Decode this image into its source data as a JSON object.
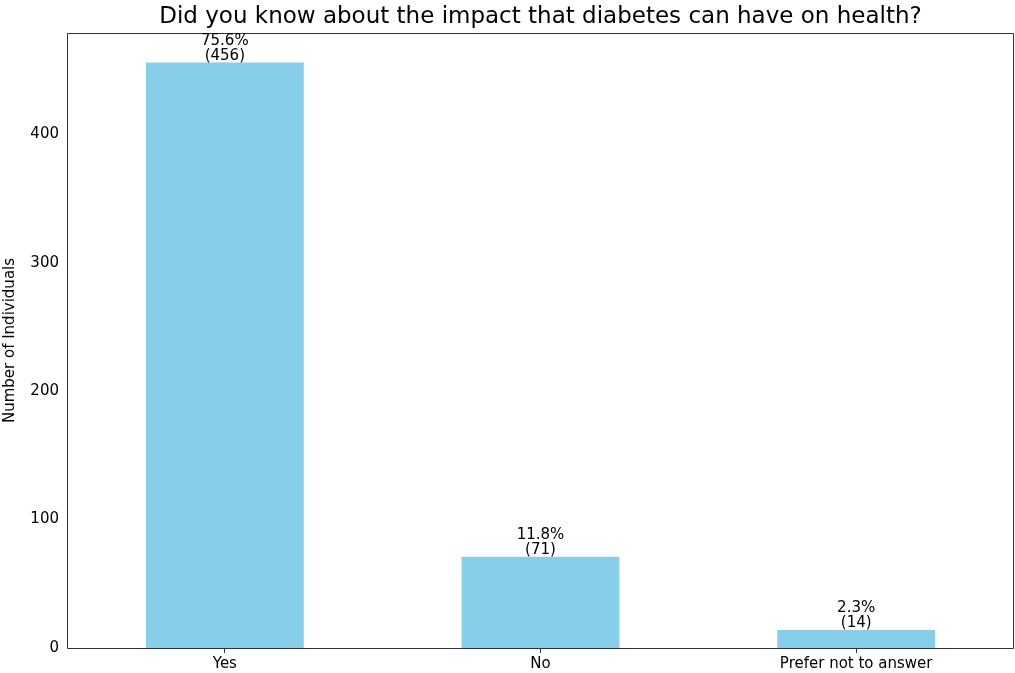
{
  "chart_data": {
    "type": "bar",
    "title": "Did you know about the impact that diabetes can have on health?",
    "ylabel": "Number of Individuals",
    "categories": [
      "Yes",
      "No",
      "Prefer not to answer"
    ],
    "values": [
      456,
      71,
      14
    ],
    "value_labels": [
      "75.6%\n(456)",
      "11.8%\n(71)",
      "2.3%\n(14)"
    ],
    "color": "#87ceeb",
    "ylim": [
      0,
      479
    ],
    "yticks": [
      0,
      100,
      200,
      300,
      400
    ],
    "grid": false,
    "legend": false
  }
}
